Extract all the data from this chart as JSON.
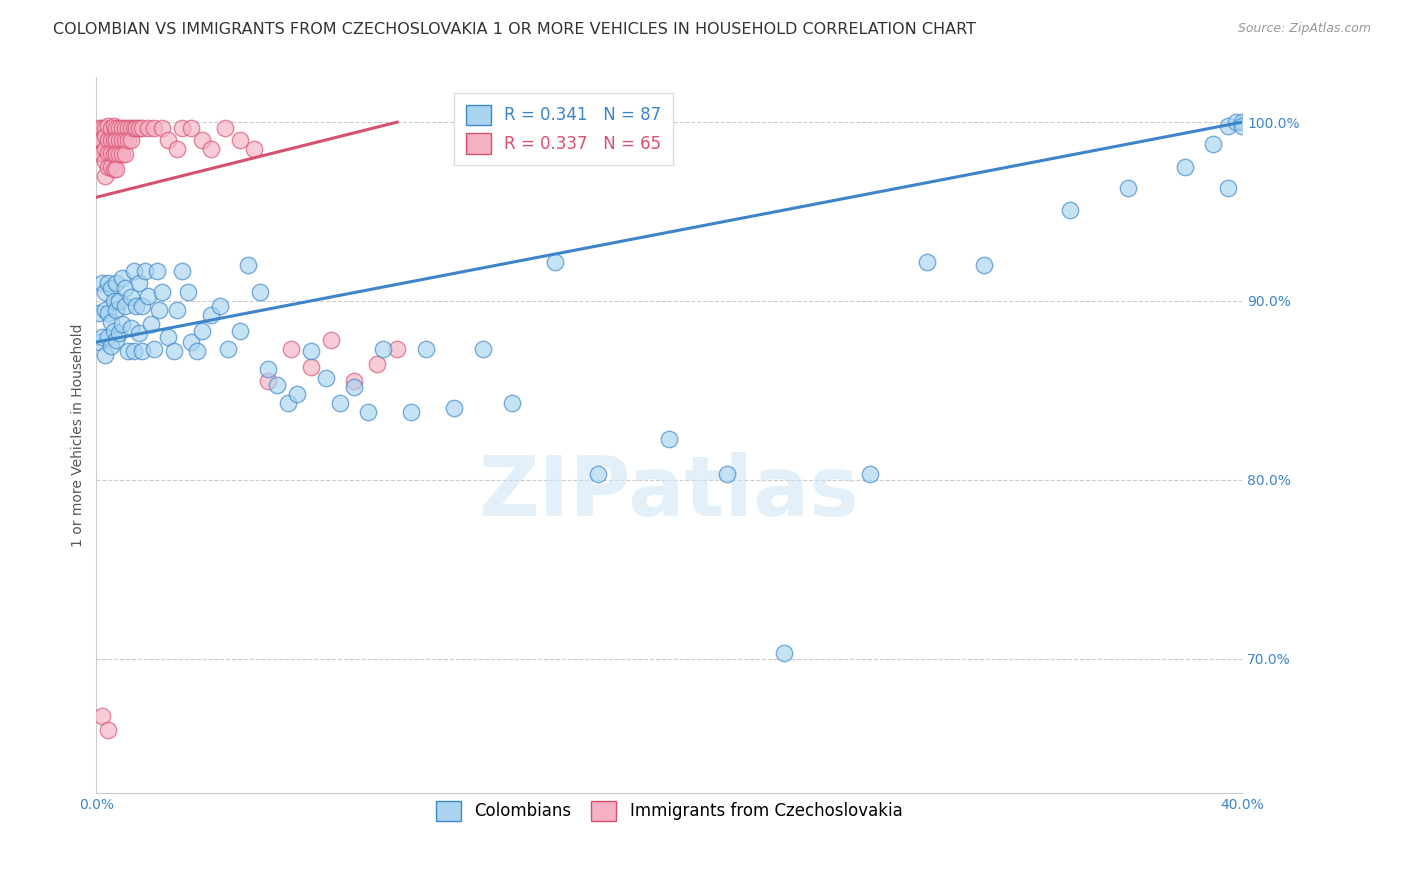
{
  "title": "COLOMBIAN VS IMMIGRANTS FROM CZECHOSLOVAKIA 1 OR MORE VEHICLES IN HOUSEHOLD CORRELATION CHART",
  "source": "Source: ZipAtlas.com",
  "ylabel": "1 or more Vehicles in Household",
  "xmin": 0.0,
  "xmax": 0.4,
  "ymin": 0.625,
  "ymax": 1.025,
  "yticks": [
    1.0,
    0.9,
    0.8,
    0.7
  ],
  "ytick_labels": [
    "100.0%",
    "90.0%",
    "80.0%",
    "70.0%"
  ],
  "xticks": [
    0.0,
    0.05,
    0.1,
    0.15,
    0.2,
    0.25,
    0.3,
    0.35,
    0.4
  ],
  "xtick_labels": [
    "0.0%",
    "",
    "",
    "",
    "",
    "",
    "",
    "",
    "40.0%"
  ],
  "blue_color": "#a8d4f0",
  "pink_color": "#f5b0c5",
  "blue_line_color": "#3d85c8",
  "pink_line_color": "#d94f6e",
  "blue_R": 0.341,
  "blue_N": 87,
  "pink_R": 0.337,
  "pink_N": 65,
  "legend_label_blue": "Colombians",
  "legend_label_pink": "Immigrants from Czechoslovakia",
  "watermark": "ZIPatlas",
  "blue_trend_x0": 0.0,
  "blue_trend_y0": 0.877,
  "blue_trend_x1": 0.4,
  "blue_trend_y1": 1.0,
  "pink_trend_x0": 0.0,
  "pink_trend_y0": 0.958,
  "pink_trend_x1": 0.105,
  "pink_trend_y1": 1.0,
  "blue_scatter_x": [
    0.001,
    0.001,
    0.002,
    0.002,
    0.003,
    0.003,
    0.003,
    0.004,
    0.004,
    0.004,
    0.005,
    0.005,
    0.005,
    0.006,
    0.006,
    0.007,
    0.007,
    0.007,
    0.008,
    0.008,
    0.009,
    0.009,
    0.01,
    0.01,
    0.011,
    0.012,
    0.012,
    0.013,
    0.013,
    0.014,
    0.015,
    0.015,
    0.016,
    0.016,
    0.017,
    0.018,
    0.019,
    0.02,
    0.021,
    0.022,
    0.023,
    0.025,
    0.027,
    0.028,
    0.03,
    0.032,
    0.033,
    0.035,
    0.037,
    0.04,
    0.043,
    0.046,
    0.05,
    0.053,
    0.057,
    0.06,
    0.063,
    0.067,
    0.07,
    0.075,
    0.08,
    0.085,
    0.09,
    0.095,
    0.1,
    0.11,
    0.115,
    0.125,
    0.135,
    0.145,
    0.16,
    0.175,
    0.2,
    0.22,
    0.24,
    0.27,
    0.29,
    0.31,
    0.34,
    0.36,
    0.38,
    0.39,
    0.395,
    0.398,
    0.4,
    0.395,
    0.4
  ],
  "blue_scatter_y": [
    0.893,
    0.877,
    0.91,
    0.88,
    0.895,
    0.905,
    0.87,
    0.893,
    0.88,
    0.91,
    0.907,
    0.888,
    0.875,
    0.9,
    0.883,
    0.895,
    0.878,
    0.91,
    0.9,
    0.882,
    0.913,
    0.887,
    0.897,
    0.907,
    0.872,
    0.902,
    0.885,
    0.917,
    0.872,
    0.897,
    0.91,
    0.882,
    0.897,
    0.872,
    0.917,
    0.903,
    0.887,
    0.873,
    0.917,
    0.895,
    0.905,
    0.88,
    0.872,
    0.895,
    0.917,
    0.905,
    0.877,
    0.872,
    0.883,
    0.892,
    0.897,
    0.873,
    0.883,
    0.92,
    0.905,
    0.862,
    0.853,
    0.843,
    0.848,
    0.872,
    0.857,
    0.843,
    0.852,
    0.838,
    0.873,
    0.838,
    0.873,
    0.84,
    0.873,
    0.843,
    0.922,
    0.803,
    0.823,
    0.803,
    0.703,
    0.803,
    0.922,
    0.92,
    0.951,
    0.963,
    0.975,
    0.988,
    0.998,
    1.0,
    1.0,
    0.963,
    0.998
  ],
  "pink_scatter_x": [
    0.001,
    0.001,
    0.001,
    0.002,
    0.002,
    0.002,
    0.003,
    0.003,
    0.003,
    0.003,
    0.003,
    0.004,
    0.004,
    0.004,
    0.004,
    0.005,
    0.005,
    0.005,
    0.005,
    0.006,
    0.006,
    0.006,
    0.006,
    0.007,
    0.007,
    0.007,
    0.007,
    0.008,
    0.008,
    0.008,
    0.009,
    0.009,
    0.009,
    0.01,
    0.01,
    0.01,
    0.011,
    0.011,
    0.012,
    0.012,
    0.013,
    0.014,
    0.015,
    0.016,
    0.018,
    0.02,
    0.023,
    0.025,
    0.028,
    0.03,
    0.033,
    0.037,
    0.04,
    0.045,
    0.05,
    0.055,
    0.06,
    0.068,
    0.075,
    0.082,
    0.09,
    0.098,
    0.105,
    0.002,
    0.004
  ],
  "pink_scatter_y": [
    0.997,
    0.99,
    0.983,
    0.997,
    0.99,
    0.983,
    0.997,
    0.992,
    0.985,
    0.978,
    0.97,
    0.998,
    0.99,
    0.983,
    0.975,
    0.997,
    0.99,
    0.983,
    0.975,
    0.998,
    0.99,
    0.982,
    0.974,
    0.997,
    0.99,
    0.982,
    0.974,
    0.997,
    0.99,
    0.982,
    0.997,
    0.99,
    0.982,
    0.997,
    0.99,
    0.982,
    0.997,
    0.99,
    0.997,
    0.99,
    0.997,
    0.997,
    0.997,
    0.997,
    0.997,
    0.997,
    0.997,
    0.99,
    0.985,
    0.997,
    0.997,
    0.99,
    0.985,
    0.997,
    0.99,
    0.985,
    0.855,
    0.873,
    0.863,
    0.878,
    0.855,
    0.865,
    0.873,
    0.668,
    0.66
  ],
  "background_color": "#ffffff",
  "grid_color": "#cccccc",
  "axis_color": "#3d85c8",
  "title_color": "#333333",
  "title_fontsize": 11.5,
  "ylabel_fontsize": 10,
  "tick_fontsize": 10,
  "legend_fontsize": 12
}
